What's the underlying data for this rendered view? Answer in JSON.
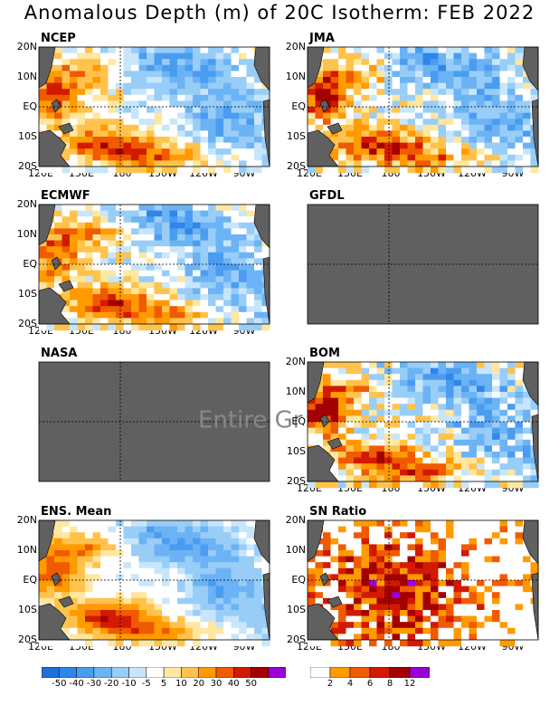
{
  "chart_data": {
    "type": "heatmap",
    "title": "Anomalous Depth (m) of 20C Isotherm: FEB 2022",
    "x_ticks": [
      "120E",
      "150E",
      "180",
      "150W",
      "120W",
      "90W"
    ],
    "y_ticks": [
      "20N",
      "10N",
      "EQ",
      "10S",
      "20S"
    ],
    "panels": [
      {
        "name": "NCEP",
        "status": "data",
        "pattern": "ncep"
      },
      {
        "name": "JMA",
        "status": "data",
        "pattern": "jma"
      },
      {
        "name": "ECMWF",
        "status": "data",
        "pattern": "ecmwf"
      },
      {
        "name": "GFDL",
        "status": "no-data"
      },
      {
        "name": "NASA",
        "status": "no-data",
        "overlay_text": "Entire Gr"
      },
      {
        "name": "BOM",
        "status": "data",
        "pattern": "bom"
      },
      {
        "name": "ENS. Mean",
        "status": "data",
        "pattern": "ens"
      },
      {
        "name": "SN Ratio",
        "status": "data",
        "pattern": "sn"
      }
    ],
    "anomaly_colorbar": {
      "labels": [
        "-50",
        "-40",
        "-30",
        "-20",
        "-10",
        "-5",
        "5",
        "10",
        "20",
        "30",
        "40",
        "50"
      ],
      "colors": [
        "#1e6fd9",
        "#2f86ea",
        "#4a9cf0",
        "#6cb3f5",
        "#98cdf8",
        "#c8e6fb",
        "#ffffff",
        "#ffe7a0",
        "#ffc34d",
        "#ff9a00",
        "#f05a00",
        "#d21a00",
        "#a50000",
        "#9a00d8"
      ]
    },
    "sn_colorbar": {
      "labels": [
        "2",
        "4",
        "6",
        "8",
        "12"
      ],
      "colors": [
        "#ffffff",
        "#ff9a00",
        "#f05a00",
        "#d21a00",
        "#a50000",
        "#9a00d8"
      ]
    }
  }
}
